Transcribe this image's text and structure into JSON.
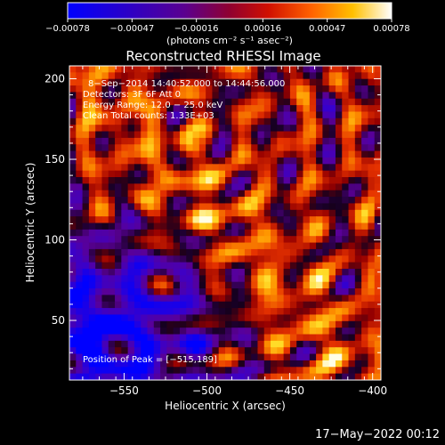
{
  "chart_data": {
    "type": "heatmap",
    "title": "Reconstructed RHESSI Image",
    "xlabel": "Heliocentric X (arcsec)",
    "ylabel": "Heliocentric Y (arcsec)",
    "xlim": [
      -583,
      -395
    ],
    "ylim": [
      13,
      208
    ],
    "x_ticks": [
      -550,
      -500,
      -450,
      -400
    ],
    "x_tick_labels": [
      "−550",
      "−500",
      "−450",
      "−400"
    ],
    "y_ticks": [
      50,
      100,
      150,
      200
    ],
    "y_tick_labels": [
      "50",
      "100",
      "150",
      "200"
    ],
    "colorbar": {
      "label": "(photons cm⁻² s⁻¹ asec⁻²)",
      "ticks": [
        -0.00078,
        -0.00047,
        -0.00016,
        0.00016,
        0.00047,
        0.00078
      ],
      "tick_labels": [
        "−0.00078",
        "−0.00047",
        "−0.00016",
        "0.00016",
        "0.00047",
        "0.00078"
      ],
      "colormap": [
        "#0000ff",
        "#2a00c8",
        "#6a0096",
        "#a00000",
        "#e03000",
        "#ff8000",
        "#ffd000",
        "#ffffff"
      ]
    },
    "annotations": [
      "8−Sep−2014 14:40:52.000 to 14:44:56.000",
      "Detectors: 3F 6F     Att 0",
      "Energy Range: 12.0 − 25.0 keV",
      "Clean     Total counts: 1.33E+03"
    ],
    "peak_label": "Position of Peak = [−515,189]",
    "peak": [
      -515,
      189
    ],
    "grid": false
  },
  "footer_date": "17−May−2022 00:12"
}
